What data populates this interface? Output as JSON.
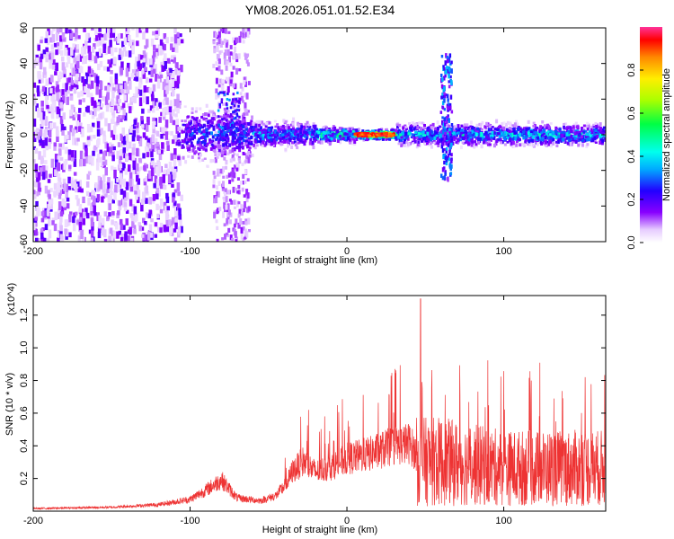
{
  "figure": {
    "title": "YM08.2026.051.01.52.E34"
  },
  "chart_data": [
    {
      "type": "heatmap",
      "xlabel": "Height of straight line (km)",
      "ylabel": "Frequency (Hz)",
      "xlim": [
        -200,
        165
      ],
      "ylim": [
        -60,
        60
      ],
      "xticks": [
        -200,
        -100,
        0,
        100
      ],
      "yticks": [
        -60,
        -40,
        -20,
        0,
        20,
        40,
        60
      ],
      "colorbar": {
        "label": "Normalized spectral amplitude",
        "range": [
          0,
          1
        ],
        "ticks": [
          "0.0",
          "0.2",
          "0.4",
          "0.6",
          "0.8"
        ],
        "colormap": "rainbow"
      },
      "regions": [
        {
          "description": "diffuse noise",
          "x": [
            -200,
            -105
          ],
          "amplitude": 0.12
        },
        {
          "description": "noise band",
          "x": [
            -85,
            -62
          ],
          "amplitude": 0.1
        },
        {
          "description": "central ridge",
          "x": [
            -100,
            165
          ],
          "center_hz": 0,
          "amplitude_peak": 0.95
        },
        {
          "description": "strong peak",
          "x": [
            5,
            30
          ],
          "center_hz": 0,
          "amplitude": 0.95
        },
        {
          "description": "vertical spike",
          "x": 63,
          "freq_range": [
            -25,
            45
          ],
          "amplitude": 0.35
        }
      ]
    },
    {
      "type": "line",
      "xlabel": "Height of straight line (km)",
      "ylabel": "SNR (10 * v/v)",
      "y_exponent_label": "(x10^4)",
      "xlim": [
        -200,
        165
      ],
      "ylim": [
        0,
        1.32
      ],
      "xticks": [
        -200,
        -100,
        0,
        100
      ],
      "yticks": [
        "0.2",
        "0.4",
        "0.6",
        "0.8",
        "1.0",
        "1.2"
      ],
      "series": [
        {
          "color": "#ee3333",
          "envelope": [
            {
              "x": -200,
              "y": 0.02
            },
            {
              "x": -150,
              "y": 0.03
            },
            {
              "x": -120,
              "y": 0.05
            },
            {
              "x": -100,
              "y": 0.09
            },
            {
              "x": -90,
              "y": 0.16
            },
            {
              "x": -80,
              "y": 0.24
            },
            {
              "x": -70,
              "y": 0.1
            },
            {
              "x": -55,
              "y": 0.08
            },
            {
              "x": -45,
              "y": 0.12
            },
            {
              "x": -38,
              "y": 0.22
            },
            {
              "x": -35,
              "y": 0.3
            },
            {
              "x": -28,
              "y": 0.38
            },
            {
              "x": -20,
              "y": 0.3
            },
            {
              "x": -10,
              "y": 0.34
            },
            {
              "x": 0,
              "y": 0.4
            },
            {
              "x": 15,
              "y": 0.44
            },
            {
              "x": 30,
              "y": 0.5
            },
            {
              "x": 40,
              "y": 0.52
            },
            {
              "x": 45,
              "y": 0.42
            },
            {
              "x": 60,
              "y": 0.42
            },
            {
              "x": 100,
              "y": 0.36
            },
            {
              "x": 165,
              "y": 0.36
            }
          ],
          "peak": {
            "x": 47,
            "y": 1.3
          }
        }
      ]
    }
  ]
}
